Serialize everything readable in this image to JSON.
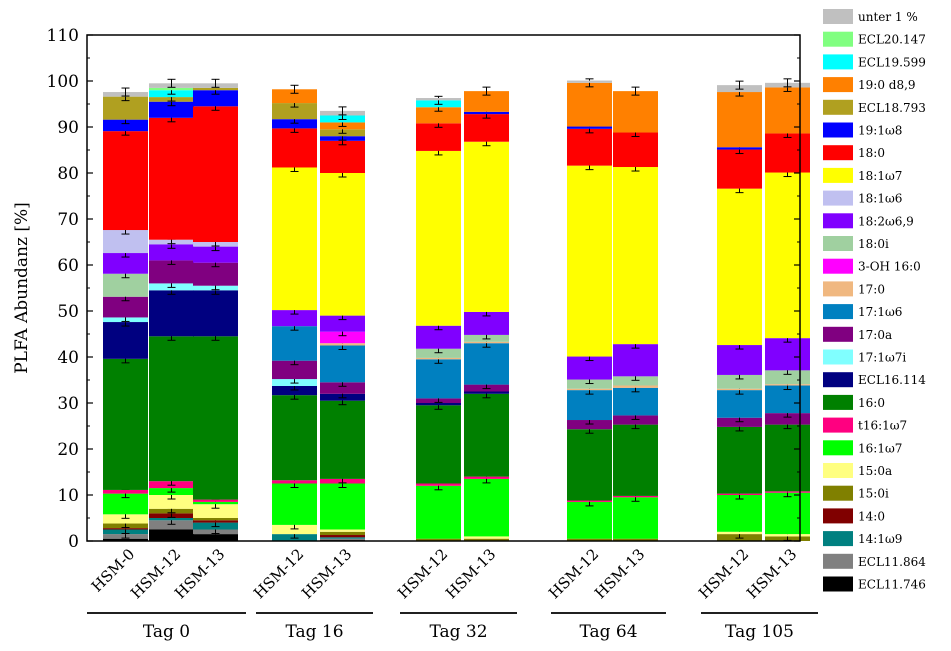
{
  "chart_data": {
    "type": "bar",
    "stacked": true,
    "ylabel": "PLFA Abundanz [%]",
    "xlabel": "",
    "ylim": [
      0,
      110
    ],
    "yticks": [
      0,
      10,
      20,
      30,
      40,
      50,
      60,
      70,
      80,
      90,
      100,
      110
    ],
    "grid": false,
    "legend_position": "right",
    "groups": [
      {
        "label": "Tag 0",
        "categories": [
          "HSM-0",
          "HSM-12",
          "HSM-13"
        ]
      },
      {
        "label": "Tag 16",
        "categories": [
          "HSM-12",
          "HSM-13"
        ]
      },
      {
        "label": "Tag 32",
        "categories": [
          "HSM-12",
          "HSM-13"
        ]
      },
      {
        "label": "Tag 64",
        "categories": [
          "HSM-12",
          "HSM-13"
        ]
      },
      {
        "label": "Tag 105",
        "categories": [
          "HSM-12",
          "HSM-13"
        ]
      }
    ],
    "series": [
      {
        "name": "ECL11.746",
        "color": "#000000",
        "values": [
          0.5,
          2.5,
          1.5,
          0,
          0.2,
          0,
          0,
          0,
          0,
          0,
          0
        ]
      },
      {
        "name": "ECL11.864",
        "color": "#808080",
        "values": [
          1,
          2,
          1,
          0,
          0.3,
          0,
          0,
          0,
          0,
          0,
          0
        ]
      },
      {
        "name": "14:1ω9",
        "color": "#008080",
        "values": [
          1,
          0.5,
          1.5,
          1.5,
          0.3,
          0,
          0,
          0,
          0,
          0,
          0
        ]
      },
      {
        "name": "14:0",
        "color": "#800000",
        "values": [
          0.3,
          1,
          0.5,
          0,
          0.5,
          0,
          0,
          0,
          0,
          0,
          0
        ]
      },
      {
        "name": "15:0i",
        "color": "#808000",
        "values": [
          1,
          1,
          0.5,
          0,
          0.7,
          0.5,
          0.5,
          0.5,
          0.5,
          1.5,
          1
        ]
      },
      {
        "name": "15:0a",
        "color": "#FFFF80",
        "values": [
          2,
          3,
          3,
          2,
          0.5,
          0,
          0.5,
          0,
          0,
          0.5,
          0.5
        ]
      },
      {
        "name": "16:1ω7",
        "color": "#00FF00",
        "values": [
          4.5,
          1.5,
          0.5,
          9,
          10,
          11.5,
          12.5,
          8,
          9,
          8,
          9
        ]
      },
      {
        "name": "t16:1ω7",
        "color": "#FF0080",
        "values": [
          0.8,
          1.5,
          0.5,
          0.7,
          1,
          0.5,
          0.5,
          0.3,
          0.3,
          0.3,
          0.3
        ]
      },
      {
        "name": "16:0",
        "color": "#008000",
        "values": [
          28.5,
          31.5,
          35.5,
          18.5,
          17,
          17,
          18,
          15.5,
          15.5,
          14.5,
          14.5
        ]
      },
      {
        "name": "ECL16.114",
        "color": "#000080",
        "values": [
          8,
          10,
          10,
          2,
          1.5,
          0.5,
          0.5,
          0,
          0,
          0,
          0
        ]
      },
      {
        "name": "17:1ω7i",
        "color": "#80FFFF",
        "values": [
          1,
          1.5,
          1,
          1.5,
          0,
          0,
          0,
          0,
          0,
          0,
          0
        ]
      },
      {
        "name": "17:0a",
        "color": "#800080",
        "values": [
          4.5,
          5,
          5,
          4,
          2.5,
          1,
          1.5,
          2,
          2,
          2,
          2.5
        ]
      },
      {
        "name": "17:1ω6",
        "color": "#0080C0",
        "values": [
          0,
          0,
          0,
          7.5,
          8,
          8.5,
          9,
          6.5,
          6,
          6,
          6
        ]
      },
      {
        "name": "17:0",
        "color": "#F0B880",
        "values": [
          0,
          0,
          0,
          0,
          0.5,
          0.3,
          0.3,
          0.3,
          0.5,
          0.3,
          0.3
        ]
      },
      {
        "name": "3-OH 16:0",
        "color": "#FF00FF",
        "values": [
          0,
          0,
          0,
          0,
          2.5,
          0,
          0,
          0,
          0,
          0,
          0
        ]
      },
      {
        "name": "18:0i",
        "color": "#A0D0A0",
        "values": [
          5,
          0,
          0,
          0,
          0,
          2,
          1.5,
          2,
          2,
          3,
          3
        ]
      },
      {
        "name": "18:2ω6,9",
        "color": "#8000FF",
        "values": [
          4.5,
          3.5,
          3.5,
          3.5,
          3.5,
          5,
          5,
          5,
          7,
          6.5,
          7
        ]
      },
      {
        "name": "18:1ω6",
        "color": "#C0C0F0",
        "values": [
          5,
          1,
          1,
          0,
          0,
          0,
          0,
          0,
          0,
          0,
          0
        ]
      },
      {
        "name": "18:1ω7",
        "color": "#FFFF00",
        "values": [
          0,
          0,
          0,
          31,
          31,
          38,
          37,
          41.5,
          38.5,
          34,
          36
        ]
      },
      {
        "name": "18:0",
        "color": "#FF0000",
        "values": [
          21.5,
          26.5,
          29.5,
          8.5,
          7,
          6,
          6,
          8,
          7.5,
          8.5,
          8.5
        ]
      },
      {
        "name": "19:1ω8",
        "color": "#0000FF",
        "values": [
          2.5,
          3.5,
          3.5,
          2,
          1,
          0,
          0.5,
          0.5,
          0,
          0.5,
          0
        ]
      },
      {
        "name": "ECL18.793",
        "color": "#B0A020",
        "values": [
          5,
          1,
          0.5,
          3.5,
          1.5,
          0,
          0,
          0,
          0,
          0,
          0
        ]
      },
      {
        "name": "19:0 d8,9",
        "color": "#FF8000",
        "values": [
          0,
          0,
          0,
          3,
          1.5,
          3.5,
          4.5,
          9.5,
          9,
          12,
          10
        ]
      },
      {
        "name": "ECL19.599",
        "color": "#00FFFF",
        "values": [
          0,
          1.5,
          0,
          0,
          1.5,
          1.5,
          0,
          0,
          0,
          0,
          0
        ]
      },
      {
        "name": "ECL20.147",
        "color": "#80FF80",
        "values": [
          0,
          0.5,
          0,
          0,
          0,
          0,
          0,
          0,
          0,
          0,
          0
        ]
      },
      {
        "name": "unter 1 %",
        "color": "#C0C0C0",
        "values": [
          1,
          1,
          1,
          0,
          1,
          0.5,
          0,
          0.5,
          0,
          1.5,
          1
        ]
      }
    ]
  }
}
